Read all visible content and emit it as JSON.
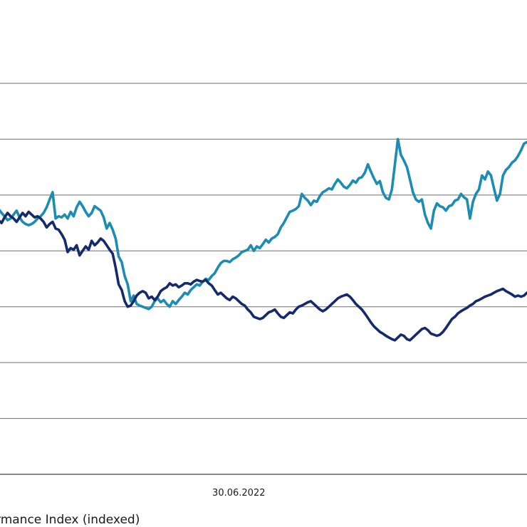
{
  "chart_data": {
    "type": "line",
    "title": "",
    "xlabel": "",
    "ylabel": "",
    "ylim": [
      0,
      7
    ],
    "grid": true,
    "x_tick_labels": [
      {
        "index": 80,
        "label": "30.06.2022"
      }
    ],
    "legend_text": "rmance Index (indexed)",
    "colors": {
      "light": "#1b8cb3",
      "dark": "#142a6b",
      "grid": "#6e6e6e",
      "axis": "#444444"
    },
    "series": [
      {
        "name": "",
        "color": "#1b8cb3",
        "values": [
          4.75,
          4.68,
          4.62,
          4.55,
          4.58,
          4.65,
          4.72,
          4.6,
          4.52,
          4.48,
          4.46,
          4.48,
          4.52,
          4.58,
          4.62,
          4.68,
          4.78,
          4.92,
          5.05,
          4.58,
          4.62,
          4.6,
          4.65,
          4.58,
          4.7,
          4.62,
          4.78,
          4.88,
          4.8,
          4.7,
          4.62,
          4.68,
          4.8,
          4.76,
          4.72,
          4.6,
          4.4,
          4.5,
          4.38,
          4.22,
          3.9,
          3.8,
          3.55,
          3.4,
          3.1,
          3.2,
          3.05,
          3.02,
          3.0,
          2.98,
          2.96,
          3.0,
          3.1,
          3.15,
          3.08,
          3.12,
          3.05,
          3.0,
          3.1,
          3.05,
          3.12,
          3.18,
          3.25,
          3.22,
          3.3,
          3.35,
          3.4,
          3.38,
          3.45,
          3.5,
          3.48,
          3.55,
          3.6,
          3.7,
          3.78,
          3.82,
          3.82,
          3.8,
          3.85,
          3.88,
          3.92,
          3.98,
          4.0,
          4.02,
          4.1,
          4.0,
          4.08,
          4.05,
          4.12,
          4.2,
          4.15,
          4.22,
          4.25,
          4.3,
          4.42,
          4.5,
          4.6,
          4.7,
          4.72,
          4.75,
          4.8,
          5.02,
          4.95,
          4.9,
          4.82,
          4.9,
          4.88,
          4.98,
          5.05,
          5.08,
          5.12,
          5.1,
          5.2,
          5.28,
          5.22,
          5.15,
          5.12,
          5.18,
          5.26,
          5.22,
          5.3,
          5.32,
          5.4,
          5.55,
          5.42,
          5.3,
          5.2,
          5.25,
          5.05,
          4.95,
          4.92,
          5.1,
          5.55,
          6.0,
          5.72,
          5.62,
          5.5,
          5.28,
          5.05,
          4.92,
          4.88,
          4.92,
          4.65,
          4.5,
          4.4,
          4.72,
          4.85,
          4.8,
          4.78,
          4.72,
          4.8,
          4.82,
          4.9,
          4.92,
          5.02,
          4.96,
          4.92,
          4.58,
          4.88,
          5.02,
          5.1,
          5.35,
          5.28,
          5.42,
          5.35,
          5.12,
          4.9,
          5.02,
          5.35,
          5.45,
          5.5,
          5.58,
          5.62,
          5.7,
          5.8,
          5.92,
          5.95
        ]
      },
      {
        "name": "",
        "color": "#142a6b",
        "values": [
          4.55,
          4.5,
          4.6,
          4.68,
          4.62,
          4.58,
          4.52,
          4.6,
          4.68,
          4.62,
          4.7,
          4.65,
          4.6,
          4.62,
          4.58,
          4.52,
          4.42,
          4.48,
          4.52,
          4.4,
          4.38,
          4.3,
          4.2,
          3.98,
          4.05,
          4.02,
          4.1,
          3.92,
          4.0,
          4.08,
          4.02,
          4.18,
          4.1,
          4.15,
          4.22,
          4.18,
          4.1,
          4.02,
          3.95,
          3.7,
          3.4,
          3.3,
          3.1,
          3.0,
          3.02,
          3.1,
          3.2,
          3.25,
          3.28,
          3.25,
          3.15,
          3.18,
          3.12,
          3.18,
          3.28,
          3.32,
          3.35,
          3.42,
          3.38,
          3.4,
          3.35,
          3.38,
          3.42,
          3.42,
          3.4,
          3.45,
          3.48,
          3.46,
          3.45,
          3.48,
          3.42,
          3.38,
          3.3,
          3.22,
          3.25,
          3.2,
          3.15,
          3.12,
          3.18,
          3.15,
          3.1,
          3.05,
          3.02,
          2.95,
          2.9,
          2.82,
          2.8,
          2.78,
          2.8,
          2.85,
          2.9,
          2.92,
          2.95,
          2.88,
          2.82,
          2.8,
          2.85,
          2.9,
          2.88,
          2.95,
          3.0,
          3.02,
          3.05,
          3.08,
          3.1,
          3.05,
          3.0,
          2.95,
          2.92,
          2.95,
          3.0,
          3.05,
          3.1,
          3.15,
          3.18,
          3.2,
          3.22,
          3.18,
          3.12,
          3.05,
          3.0,
          2.95,
          2.88,
          2.8,
          2.72,
          2.65,
          2.6,
          2.55,
          2.52,
          2.48,
          2.45,
          2.42,
          2.4,
          2.45,
          2.5,
          2.48,
          2.42,
          2.4,
          2.45,
          2.5,
          2.55,
          2.6,
          2.62,
          2.58,
          2.52,
          2.5,
          2.48,
          2.5,
          2.55,
          2.62,
          2.7,
          2.78,
          2.82,
          2.88,
          2.92,
          2.95,
          2.98,
          3.02,
          3.05,
          3.1,
          3.12,
          3.15,
          3.18,
          3.2,
          3.22,
          3.25,
          3.28,
          3.3,
          3.32,
          3.28,
          3.25,
          3.22,
          3.18,
          3.2,
          3.18,
          3.2,
          3.25,
          3.28
        ]
      }
    ]
  }
}
